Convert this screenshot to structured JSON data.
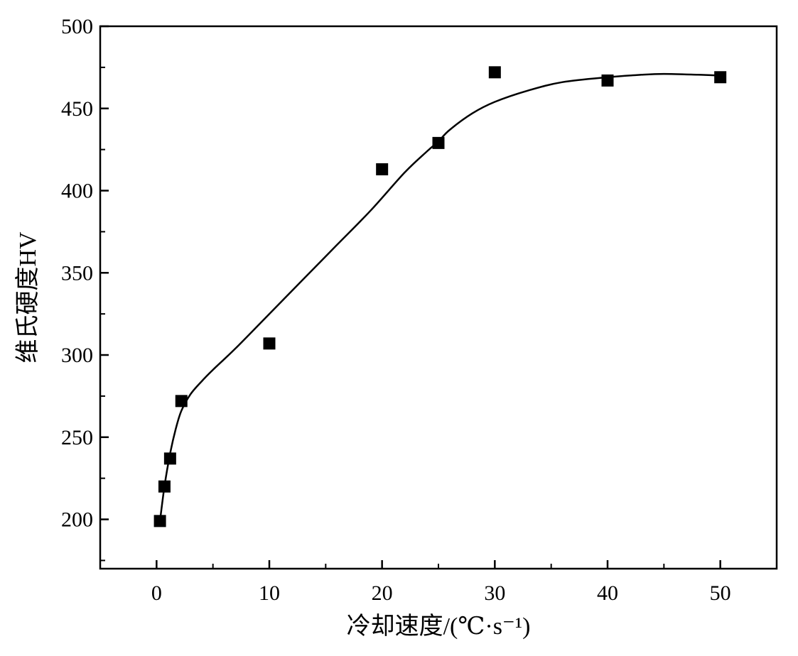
{
  "chart_data": {
    "type": "scatter",
    "xlabel": "冷却速度/(℃·s⁻¹)",
    "ylabel": "维氏硬度HV",
    "xlim": [
      -5,
      55
    ],
    "ylim": [
      170,
      500
    ],
    "x_ticks": [
      0,
      10,
      20,
      30,
      40,
      50
    ],
    "y_ticks": [
      200,
      250,
      300,
      350,
      400,
      450,
      500
    ],
    "x_tick_labels": [
      "0",
      "10",
      "20",
      "30",
      "40",
      "50"
    ],
    "y_tick_labels": [
      "200",
      "250",
      "300",
      "350",
      "400",
      "450",
      "500"
    ],
    "grid": false,
    "legend": "none",
    "series": [
      {
        "marker": "square",
        "x": [
          0.3,
          0.7,
          1.2,
          2.2,
          10,
          20,
          25,
          30,
          40,
          50
        ],
        "y": [
          199,
          220,
          237,
          272,
          307,
          413,
          429,
          472,
          467,
          469
        ]
      }
    ],
    "fit_curve": {
      "style": "smooth-line",
      "x": [
        0.3,
        0.7,
        1.2,
        1.7,
        2.2,
        3,
        4,
        5,
        7,
        10,
        13,
        16,
        19,
        22,
        24,
        25,
        26,
        28,
        30,
        33,
        36,
        40,
        43,
        45,
        48,
        50
      ],
      "y": [
        199,
        220,
        240,
        255,
        266,
        276,
        284,
        291,
        304,
        325,
        346,
        367,
        388,
        411,
        424,
        430,
        437,
        447,
        454,
        461,
        466,
        469,
        470.5,
        471,
        470.5,
        470
      ]
    }
  }
}
